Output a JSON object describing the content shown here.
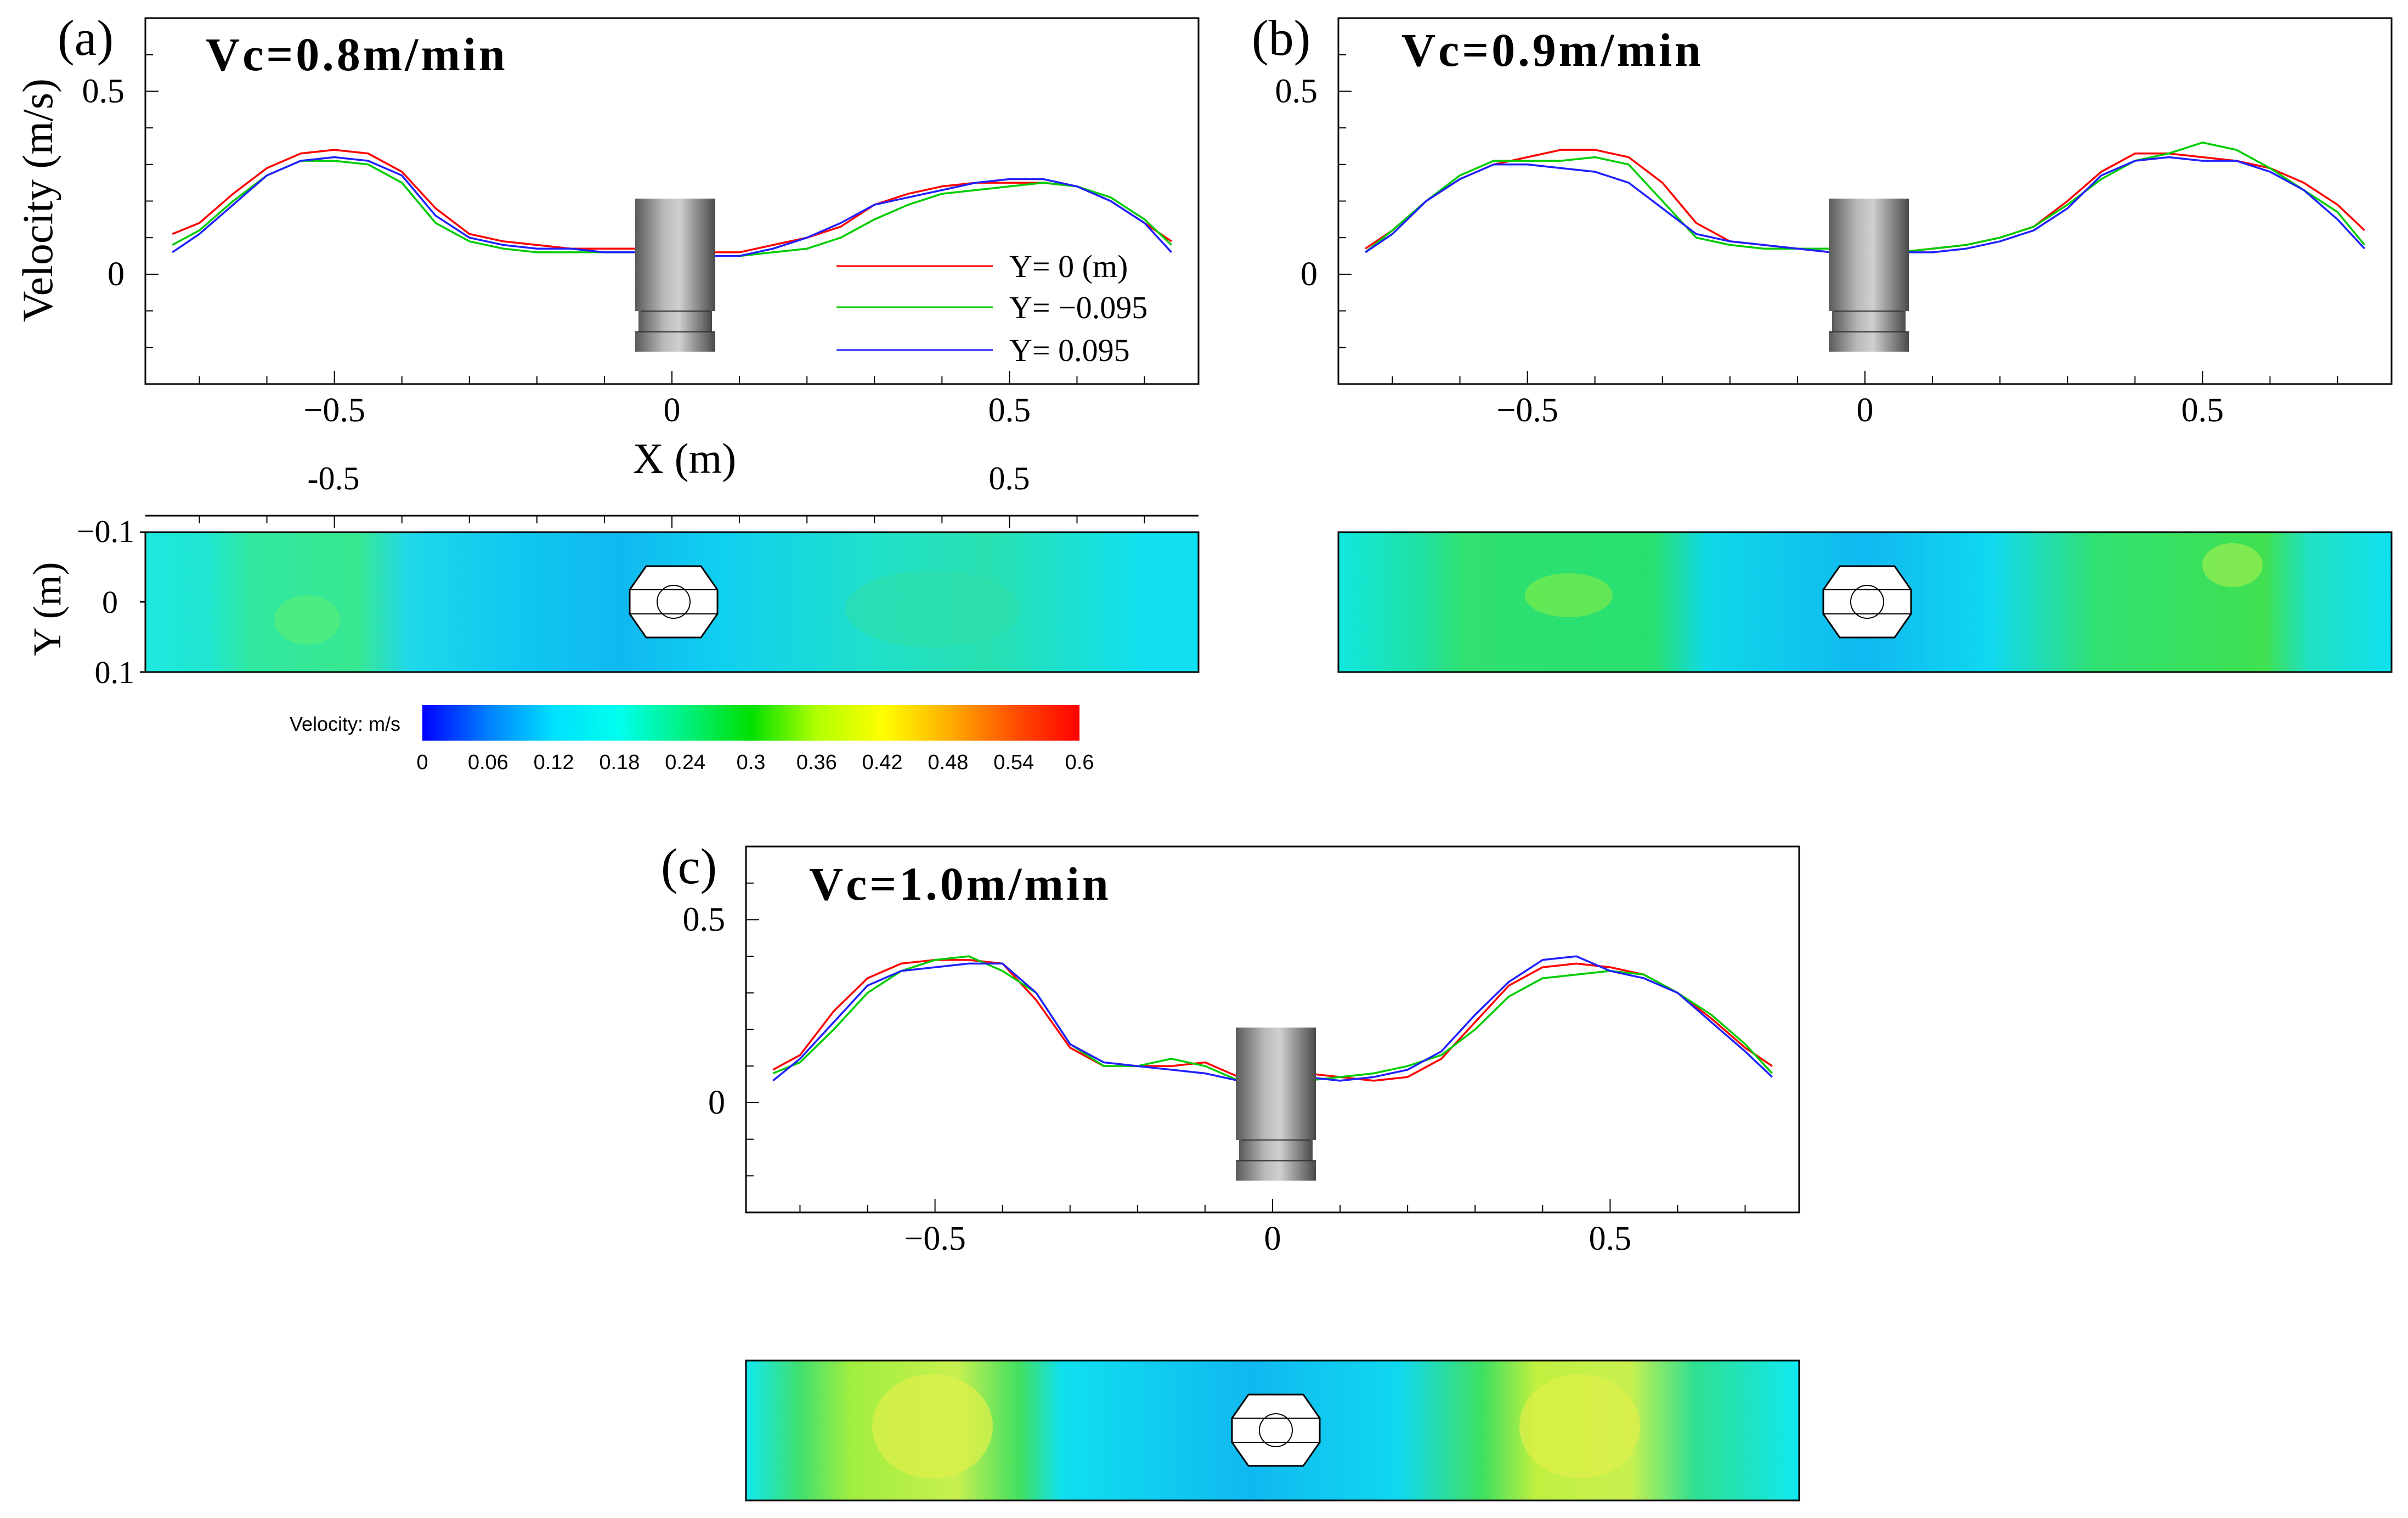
{
  "figure": {
    "y_axis_label": "Velocity (m/s)",
    "x_axis_label": "X (m)",
    "contour_y_label": "Y (m)"
  },
  "colorbar": {
    "title": "Velocity: m/s",
    "ticks": [
      "0",
      "0.06",
      "0.12",
      "0.18",
      "0.24",
      "0.3",
      "0.36",
      "0.42",
      "0.48",
      "0.54",
      "0.6"
    ],
    "colors": [
      "#0000ff",
      "#0080ff",
      "#00e0ff",
      "#00ffee",
      "#00f080",
      "#00e000",
      "#b0ff00",
      "#ffff00",
      "#ffb000",
      "#ff5000",
      "#ff0000"
    ]
  },
  "series_colors": {
    "Y0": "#ff0000",
    "Yneg": "#00cc00",
    "Ypos": "#2020ff"
  },
  "chart_data": [
    {
      "type": "line",
      "panel_label": "(a)",
      "title": "Vc=0.8m/min",
      "xlabel": "X (m)",
      "ylabel": "Velocity (m/s)",
      "xlim": [
        -0.78,
        0.78
      ],
      "ylim": [
        -0.3,
        0.7
      ],
      "x_ticks": [
        "-0.5",
        "0",
        "0.5"
      ],
      "y_ticks": [
        "0",
        "0.5"
      ],
      "legend": [
        "Y= 0 (m)",
        "Y= −0.095",
        "Y= 0.095"
      ],
      "series": [
        {
          "name": "Y= 0 (m)",
          "x": [
            -0.74,
            -0.7,
            -0.65,
            -0.6,
            -0.55,
            -0.5,
            -0.45,
            -0.4,
            -0.35,
            -0.3,
            -0.25,
            -0.2,
            -0.15,
            -0.1,
            -0.05,
            0,
            0.05,
            0.1,
            0.15,
            0.2,
            0.25,
            0.3,
            0.35,
            0.4,
            0.45,
            0.5,
            0.55,
            0.6,
            0.65,
            0.7,
            0.74
          ],
          "values": [
            0.11,
            0.14,
            0.22,
            0.29,
            0.33,
            0.34,
            0.33,
            0.28,
            0.18,
            0.11,
            0.09,
            0.08,
            0.07,
            0.07,
            0.07,
            0.07,
            0.06,
            0.06,
            0.08,
            0.1,
            0.13,
            0.19,
            0.22,
            0.24,
            0.25,
            0.25,
            0.25,
            0.24,
            0.2,
            0.14,
            0.09
          ]
        },
        {
          "name": "Y= −0.095",
          "x": [
            -0.74,
            -0.7,
            -0.65,
            -0.6,
            -0.55,
            -0.5,
            -0.45,
            -0.4,
            -0.35,
            -0.3,
            -0.25,
            -0.2,
            -0.15,
            -0.1,
            -0.05,
            0,
            0.05,
            0.1,
            0.15,
            0.2,
            0.25,
            0.3,
            0.35,
            0.4,
            0.45,
            0.5,
            0.55,
            0.6,
            0.65,
            0.7,
            0.74
          ],
          "values": [
            0.08,
            0.12,
            0.2,
            0.27,
            0.31,
            0.31,
            0.3,
            0.25,
            0.14,
            0.09,
            0.07,
            0.06,
            0.06,
            0.06,
            0.06,
            0.06,
            0.05,
            0.05,
            0.06,
            0.07,
            0.1,
            0.15,
            0.19,
            0.22,
            0.23,
            0.24,
            0.25,
            0.24,
            0.21,
            0.15,
            0.08
          ]
        },
        {
          "name": "Y= 0.095",
          "x": [
            -0.74,
            -0.7,
            -0.65,
            -0.6,
            -0.55,
            -0.5,
            -0.45,
            -0.4,
            -0.35,
            -0.3,
            -0.25,
            -0.2,
            -0.15,
            -0.1,
            -0.05,
            0,
            0.05,
            0.1,
            0.15,
            0.2,
            0.25,
            0.3,
            0.35,
            0.4,
            0.45,
            0.5,
            0.55,
            0.6,
            0.65,
            0.7,
            0.74
          ],
          "values": [
            0.06,
            0.11,
            0.19,
            0.27,
            0.31,
            0.32,
            0.31,
            0.27,
            0.16,
            0.1,
            0.08,
            0.07,
            0.07,
            0.06,
            0.06,
            0.05,
            0.05,
            0.05,
            0.07,
            0.1,
            0.14,
            0.19,
            0.21,
            0.23,
            0.25,
            0.26,
            0.26,
            0.24,
            0.2,
            0.14,
            0.06
          ]
        }
      ],
      "contour": {
        "x_ticks": [
          "-0.5",
          "0.5"
        ],
        "y_ticks": [
          "−0.1",
          "0",
          "0.1"
        ]
      }
    },
    {
      "type": "line",
      "panel_label": "(b)",
      "title": "Vc=0.9m/min",
      "xlim": [
        -0.78,
        0.78
      ],
      "ylim": [
        -0.3,
        0.7
      ],
      "x_ticks": [
        "-0.5",
        "0",
        "0.5"
      ],
      "y_ticks": [
        "0",
        "0.5"
      ],
      "series": [
        {
          "name": "Y= 0 (m)",
          "x": [
            -0.74,
            -0.7,
            -0.65,
            -0.6,
            -0.55,
            -0.5,
            -0.45,
            -0.4,
            -0.35,
            -0.3,
            -0.25,
            -0.2,
            -0.15,
            -0.1,
            -0.05,
            0,
            0.05,
            0.1,
            0.15,
            0.2,
            0.25,
            0.3,
            0.35,
            0.4,
            0.45,
            0.5,
            0.55,
            0.6,
            0.65,
            0.7,
            0.74
          ],
          "values": [
            0.07,
            0.12,
            0.2,
            0.26,
            0.3,
            0.32,
            0.34,
            0.34,
            0.32,
            0.25,
            0.14,
            0.09,
            0.08,
            0.07,
            0.06,
            0.06,
            0.06,
            0.07,
            0.08,
            0.1,
            0.13,
            0.2,
            0.28,
            0.33,
            0.33,
            0.32,
            0.31,
            0.29,
            0.25,
            0.19,
            0.12
          ]
        },
        {
          "name": "Y= −0.095",
          "x": [
            -0.74,
            -0.7,
            -0.65,
            -0.6,
            -0.55,
            -0.5,
            -0.45,
            -0.4,
            -0.35,
            -0.3,
            -0.25,
            -0.2,
            -0.15,
            -0.1,
            -0.05,
            0,
            0.05,
            0.1,
            0.15,
            0.2,
            0.25,
            0.3,
            0.35,
            0.4,
            0.45,
            0.5,
            0.55,
            0.6,
            0.65,
            0.7,
            0.74
          ],
          "values": [
            0.06,
            0.12,
            0.2,
            0.27,
            0.31,
            0.31,
            0.31,
            0.32,
            0.3,
            0.2,
            0.1,
            0.08,
            0.07,
            0.07,
            0.07,
            0.06,
            0.06,
            0.07,
            0.08,
            0.1,
            0.13,
            0.19,
            0.26,
            0.31,
            0.33,
            0.36,
            0.34,
            0.29,
            0.23,
            0.17,
            0.08
          ]
        },
        {
          "name": "Y= 0.095",
          "x": [
            -0.74,
            -0.7,
            -0.65,
            -0.6,
            -0.55,
            -0.5,
            -0.45,
            -0.4,
            -0.35,
            -0.3,
            -0.25,
            -0.2,
            -0.15,
            -0.1,
            -0.05,
            0,
            0.05,
            0.1,
            0.15,
            0.2,
            0.25,
            0.3,
            0.35,
            0.4,
            0.45,
            0.5,
            0.55,
            0.6,
            0.65,
            0.7,
            0.74
          ],
          "values": [
            0.06,
            0.11,
            0.2,
            0.26,
            0.3,
            0.3,
            0.29,
            0.28,
            0.25,
            0.18,
            0.11,
            0.09,
            0.08,
            0.07,
            0.06,
            0.05,
            0.06,
            0.06,
            0.07,
            0.09,
            0.12,
            0.18,
            0.27,
            0.31,
            0.32,
            0.31,
            0.31,
            0.28,
            0.23,
            0.15,
            0.07
          ]
        }
      ]
    },
    {
      "type": "line",
      "panel_label": "(c)",
      "title": "Vc=1.0m/min",
      "xlim": [
        -0.78,
        0.78
      ],
      "ylim": [
        -0.3,
        0.7
      ],
      "x_ticks": [
        "-0.5",
        "0",
        "0.5"
      ],
      "y_ticks": [
        "0",
        "0.5"
      ],
      "series": [
        {
          "name": "Y= 0 (m)",
          "x": [
            -0.74,
            -0.7,
            -0.65,
            -0.6,
            -0.55,
            -0.5,
            -0.45,
            -0.4,
            -0.35,
            -0.3,
            -0.25,
            -0.2,
            -0.15,
            -0.1,
            -0.05,
            0,
            0.05,
            0.1,
            0.15,
            0.2,
            0.25,
            0.3,
            0.35,
            0.4,
            0.45,
            0.5,
            0.55,
            0.6,
            0.65,
            0.7,
            0.74
          ],
          "values": [
            0.09,
            0.13,
            0.25,
            0.34,
            0.38,
            0.39,
            0.39,
            0.38,
            0.28,
            0.15,
            0.1,
            0.1,
            0.1,
            0.11,
            0.07,
            0.06,
            0.08,
            0.07,
            0.06,
            0.07,
            0.12,
            0.22,
            0.32,
            0.37,
            0.38,
            0.37,
            0.35,
            0.3,
            0.23,
            0.15,
            0.1
          ]
        },
        {
          "name": "Y= −0.095",
          "x": [
            -0.74,
            -0.7,
            -0.65,
            -0.6,
            -0.55,
            -0.5,
            -0.45,
            -0.4,
            -0.35,
            -0.3,
            -0.25,
            -0.2,
            -0.15,
            -0.1,
            -0.05,
            0,
            0.05,
            0.1,
            0.15,
            0.2,
            0.25,
            0.3,
            0.35,
            0.4,
            0.45,
            0.5,
            0.55,
            0.6,
            0.65,
            0.7,
            0.74
          ],
          "values": [
            0.08,
            0.11,
            0.2,
            0.3,
            0.36,
            0.39,
            0.4,
            0.36,
            0.3,
            0.16,
            0.1,
            0.1,
            0.12,
            0.1,
            0.06,
            0.07,
            0.06,
            0.07,
            0.08,
            0.1,
            0.13,
            0.2,
            0.29,
            0.34,
            0.35,
            0.36,
            0.35,
            0.3,
            0.24,
            0.16,
            0.08
          ]
        },
        {
          "name": "Y= 0.095",
          "x": [
            -0.74,
            -0.7,
            -0.65,
            -0.6,
            -0.55,
            -0.5,
            -0.45,
            -0.4,
            -0.35,
            -0.3,
            -0.25,
            -0.2,
            -0.15,
            -0.1,
            -0.05,
            0,
            0.05,
            0.1,
            0.15,
            0.2,
            0.25,
            0.3,
            0.35,
            0.4,
            0.45,
            0.5,
            0.55,
            0.6,
            0.65,
            0.7,
            0.74
          ],
          "values": [
            0.06,
            0.12,
            0.22,
            0.32,
            0.36,
            0.37,
            0.38,
            0.38,
            0.3,
            0.16,
            0.11,
            0.1,
            0.09,
            0.08,
            0.06,
            0.06,
            0.07,
            0.06,
            0.07,
            0.09,
            0.14,
            0.24,
            0.33,
            0.39,
            0.4,
            0.36,
            0.34,
            0.3,
            0.22,
            0.14,
            0.07
          ]
        }
      ]
    }
  ]
}
